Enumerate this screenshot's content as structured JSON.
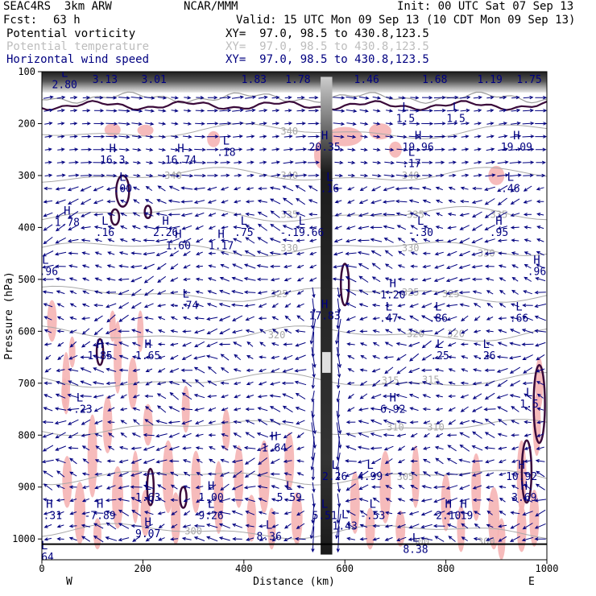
{
  "header": {
    "model": "SEAC4RS  3km ARW",
    "org": "NCAR/MMM",
    "init": "Init: 00 UTC Sat 07 Sep 13",
    "fcst_label": "Fcst:",
    "fcst_value": "63 h",
    "valid": "Valid: 15 UTC Mon 09 Sep 13 (10 CDT Mon 09 Sep 13)"
  },
  "fields": [
    {
      "label": "Potential vorticity",
      "xy": "XY=  97.0, 98.5 to 430.8,123.5",
      "color": "#000000"
    },
    {
      "label": "Potential temperature",
      "xy": "XY=  97.0, 98.5 to 430.8,123.5",
      "color": "#bdbdbd"
    },
    {
      "label": "Horizontal wind speed",
      "xy": "XY=  97.0, 98.5 to 430.8,123.5",
      "color": "#000080"
    }
  ],
  "chart_data": {
    "type": "cross-section",
    "xlabel": "Distance (km)",
    "ylabel": "Pressure (hPa)",
    "xlim": [
      0,
      1000
    ],
    "ylim": [
      100,
      1040
    ],
    "y_inverted": true,
    "xticks": [
      0,
      200,
      400,
      600,
      800,
      1000
    ],
    "yticks": [
      100,
      200,
      300,
      400,
      500,
      600,
      700,
      800,
      900,
      1000
    ],
    "x_end_labels": {
      "left": "W",
      "right": "E"
    },
    "colors": {
      "pv_shade": "#f5b4b4",
      "wind": "#000080",
      "theta": "#a8a8a8",
      "pv_contour": "#3a0a3a"
    },
    "theta_labels": [
      {
        "text": "340",
        "x": 490,
        "p": 215
      },
      {
        "text": "340",
        "x": 260,
        "p": 300
      },
      {
        "text": "340",
        "x": 490,
        "p": 300
      },
      {
        "text": "340",
        "x": 730,
        "p": 300
      },
      {
        "text": "335",
        "x": 490,
        "p": 375
      },
      {
        "text": "335",
        "x": 740,
        "p": 375
      },
      {
        "text": "335",
        "x": 905,
        "p": 375
      },
      {
        "text": "330",
        "x": 490,
        "p": 440
      },
      {
        "text": "330",
        "x": 730,
        "p": 440
      },
      {
        "text": "330",
        "x": 880,
        "p": 450
      },
      {
        "text": "325",
        "x": 470,
        "p": 528
      },
      {
        "text": "325",
        "x": 730,
        "p": 525
      },
      {
        "text": "325",
        "x": 810,
        "p": 528
      },
      {
        "text": "320",
        "x": 465,
        "p": 607
      },
      {
        "text": "320",
        "x": 740,
        "p": 605
      },
      {
        "text": "320",
        "x": 820,
        "p": 605
      },
      {
        "text": "315",
        "x": 690,
        "p": 695
      },
      {
        "text": "315",
        "x": 770,
        "p": 693
      },
      {
        "text": "310",
        "x": 700,
        "p": 785
      },
      {
        "text": "310",
        "x": 780,
        "p": 785
      },
      {
        "text": "305",
        "x": 720,
        "p": 880
      },
      {
        "text": "300",
        "x": 300,
        "p": 985
      },
      {
        "text": "300",
        "x": 750,
        "p": 1005
      },
      {
        "text": "300",
        "x": 880,
        "p": 1005
      }
    ],
    "extrema": [
      {
        "mark": "L",
        "val": "2.80",
        "x": 45,
        "p": 110
      },
      {
        "mark": "L",
        "val": "3.13",
        "x": 125,
        "p": 100
      },
      {
        "mark": "L",
        "val": "3.01",
        "x": 222,
        "p": 100
      },
      {
        "mark": "H",
        "val": "1.83",
        "x": 420,
        "p": 100
      },
      {
        "mark": "L",
        "val": "1.78",
        "x": 507,
        "p": 100
      },
      {
        "mark": "L",
        "val": "1.46",
        "x": 643,
        "p": 100
      },
      {
        "mark": "L",
        "val": "1.68",
        "x": 778,
        "p": 100
      },
      {
        "mark": "L",
        "val": "1.19",
        "x": 887,
        "p": 100
      },
      {
        "mark": "L",
        "val": "1.75",
        "x": 965,
        "p": 100
      },
      {
        "mark": "L",
        "val": "1.5",
        "x": 720,
        "p": 175
      },
      {
        "mark": "L",
        "val": "1.5",
        "x": 820,
        "p": 175
      },
      {
        "mark": "H",
        "val": "16.3",
        "x": 140,
        "p": 255
      },
      {
        "mark": "H",
        "val": "16.74",
        "x": 275,
        "p": 255
      },
      {
        "mark": "L",
        "val": ".18",
        "x": 365,
        "p": 240
      },
      {
        "mark": "H",
        "val": "20.35",
        "x": 560,
        "p": 230
      },
      {
        "mark": "H",
        "val": "19.96",
        "x": 745,
        "p": 230
      },
      {
        "mark": "H",
        "val": "19.09",
        "x": 940,
        "p": 230
      },
      {
        "mark": "L",
        "val": ".17",
        "x": 732,
        "p": 262
      },
      {
        "mark": "L",
        "val": ".00",
        "x": 160,
        "p": 310
      },
      {
        "mark": "L",
        "val": ".16",
        "x": 570,
        "p": 310
      },
      {
        "mark": "L",
        "val": ".46",
        "x": 928,
        "p": 310
      },
      {
        "mark": "H",
        "val": "1.78",
        "x": 50,
        "p": 375
      },
      {
        "mark": "L",
        "val": ".16",
        "x": 125,
        "p": 395
      },
      {
        "mark": "H",
        "val": "2.26",
        "x": 245,
        "p": 395
      },
      {
        "mark": "L",
        "val": ".75",
        "x": 400,
        "p": 395
      },
      {
        "mark": "L",
        "val": "-.19.66",
        "x": 515,
        "p": 395
      },
      {
        "mark": "L",
        "val": "-.30",
        "x": 750,
        "p": 395
      },
      {
        "mark": "H",
        "val": ".95",
        "x": 905,
        "p": 395
      },
      {
        "mark": "H",
        "val": "1.60",
        "x": 270,
        "p": 420
      },
      {
        "mark": "H",
        "val": "1.17",
        "x": 355,
        "p": 420
      },
      {
        "mark": "L",
        "val": "-.96",
        "x": 7,
        "p": 470
      },
      {
        "mark": "H",
        "val": ".96",
        "x": 980,
        "p": 470
      },
      {
        "mark": "L",
        "val": "-.74",
        "x": 285,
        "p": 535
      },
      {
        "mark": "H",
        "val": "1.20",
        "x": 695,
        "p": 515
      },
      {
        "mark": "H",
        "val": "17.83",
        "x": 560,
        "p": 555
      },
      {
        "mark": "L",
        "val": ".47",
        "x": 687,
        "p": 560
      },
      {
        "mark": "L",
        "val": ".86",
        "x": 785,
        "p": 560
      },
      {
        "mark": "L",
        "val": ".66",
        "x": 945,
        "p": 560
      },
      {
        "mark": "H",
        "val": "1.85",
        "x": 115,
        "p": 632
      },
      {
        "mark": "H",
        "val": "1.65",
        "x": 210,
        "p": 632
      },
      {
        "mark": "L",
        "val": ".25",
        "x": 788,
        "p": 632
      },
      {
        "mark": "L",
        "val": ".26",
        "x": 880,
        "p": 632
      },
      {
        "mark": "L",
        "val": "-.23",
        "x": 75,
        "p": 735
      },
      {
        "mark": "H",
        "val": "6.92",
        "x": 695,
        "p": 735
      },
      {
        "mark": "L",
        "val": "1.5",
        "x": 965,
        "p": 725
      },
      {
        "mark": "H",
        "val": "1.64",
        "x": 460,
        "p": 810
      },
      {
        "mark": "L",
        "val": "2.26",
        "x": 580,
        "p": 865
      },
      {
        "mark": "L",
        "val": "4.99",
        "x": 650,
        "p": 865
      },
      {
        "mark": "H",
        "val": "10.92",
        "x": 950,
        "p": 865
      },
      {
        "mark": "L",
        "val": "1.63",
        "x": 210,
        "p": 905
      },
      {
        "mark": "H",
        "val": "1.00",
        "x": 335,
        "p": 905
      },
      {
        "mark": "L",
        "val": "5.59",
        "x": 490,
        "p": 905
      },
      {
        "mark": "H",
        "val": "3.69",
        "x": 955,
        "p": 905
      },
      {
        "mark": "H",
        "val": "-.31",
        "x": 15,
        "p": 940
      },
      {
        "mark": "H",
        "val": "-7.89",
        "x": 115,
        "p": 940
      },
      {
        "mark": "L",
        "val": "9.26",
        "x": 335,
        "p": 940
      },
      {
        "mark": "L",
        "val": "5.51",
        "x": 560,
        "p": 940
      },
      {
        "mark": "L",
        "val": "-.53",
        "x": 655,
        "p": 940
      },
      {
        "mark": "H",
        "val": "2.10",
        "x": 805,
        "p": 940
      },
      {
        "mark": "H",
        "val": ".19",
        "x": 835,
        "p": 940
      },
      {
        "mark": "H",
        "val": "9.07",
        "x": 210,
        "p": 975
      },
      {
        "mark": "L",
        "val": "8.36",
        "x": 450,
        "p": 980
      },
      {
        "mark": "L",
        "val": "1.43",
        "x": 600,
        "p": 960
      },
      {
        "mark": "L",
        "val": "8.38",
        "x": 740,
        "p": 1005
      },
      {
        "mark": "L",
        "val": ".64",
        "x": 5,
        "p": 1020
      }
    ],
    "wind_field": {
      "x_step_km": 25,
      "p_levels": [
        150,
        175,
        200,
        225,
        250,
        275,
        300,
        325,
        350,
        375,
        400,
        425,
        450,
        475,
        500,
        525,
        550,
        575,
        600,
        625,
        650,
        675,
        700,
        725,
        750,
        775,
        800,
        825,
        850,
        875,
        900,
        925,
        950,
        975,
        1000
      ]
    }
  }
}
